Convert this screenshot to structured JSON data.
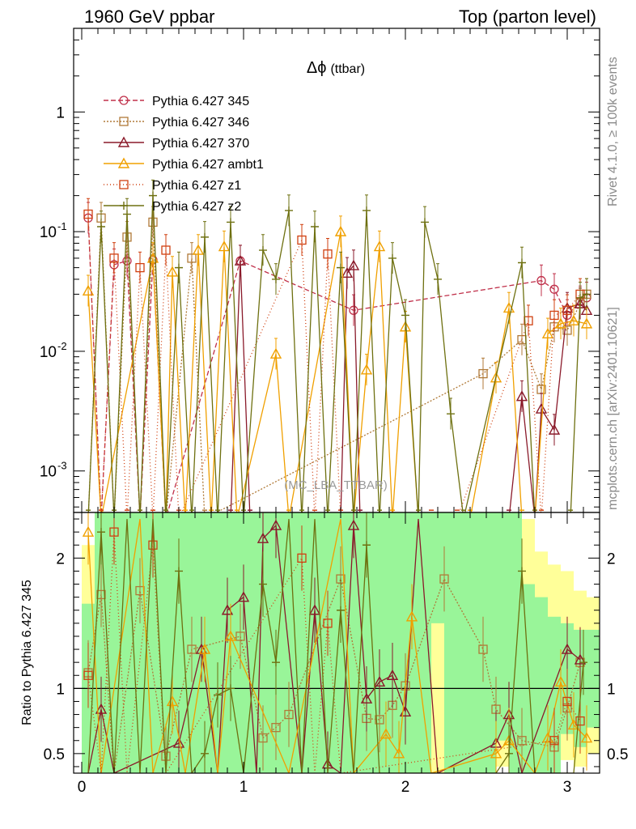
{
  "header": {
    "left": "1960 GeV ppbar",
    "right": "Top (parton level)"
  },
  "side_text": {
    "upper": "Rivet 4.1.0, ≥ 100k events",
    "lower": "mcplots.cern.ch [arXiv:2401.10621]"
  },
  "chart_data": {
    "type": "line",
    "title": "Δϕ (ttbar)",
    "title_symbol": "Δϕ",
    "title_suffix": "(ttbar)",
    "watermark": "(MC_LBA_TTBAR)",
    "xlabel": "",
    "ylabel_ratio": "Ratio to Pythia 6.427 345",
    "xlim": [
      -0.05,
      3.2
    ],
    "ylim_main": [
      0.00045,
      5.0
    ],
    "yscale_main": "log",
    "ylim_ratio": [
      0.35,
      2.35
    ],
    "x_ticks": [
      0,
      1,
      2,
      3
    ],
    "x_tick_labels": [
      "0",
      "1",
      "2",
      "3"
    ],
    "y_ticks_main": [
      0.001,
      0.01,
      0.1,
      1
    ],
    "y_tick_labels_main": [
      "10^-3",
      "10^-2",
      "10^-1",
      "1"
    ],
    "y_ticks_ratio": [
      0.5,
      1,
      2
    ],
    "y_tick_labels_ratio": [
      "0.5",
      "1",
      "2"
    ],
    "legend_position": "top-left",
    "series": [
      {
        "name": "Pythia 6.427 345",
        "color": "#c0304a",
        "dash": "6,3",
        "marker": "circle",
        "points": [
          [
            0.04,
            0.13
          ],
          [
            0.12,
            0.0004
          ],
          [
            0.2,
            0.053
          ],
          [
            0.28,
            0.057
          ],
          [
            0.36,
            0.0004
          ],
          [
            0.44,
            0.058
          ],
          [
            0.52,
            0.0004
          ],
          [
            0.98,
            0.057
          ],
          [
            1.68,
            0.022
          ],
          [
            2.84,
            0.039
          ],
          [
            2.92,
            0.033
          ],
          [
            3.0,
            0.02
          ],
          [
            3.08,
            0.026
          ],
          [
            3.12,
            0.028
          ]
        ]
      },
      {
        "name": "Pythia 6.427 346",
        "color": "#b07a38",
        "dash": "2,2",
        "marker": "square",
        "points": [
          [
            0.04,
            0.0004
          ],
          [
            0.12,
            0.13
          ],
          [
            0.2,
            0.0004
          ],
          [
            0.28,
            0.09
          ],
          [
            0.36,
            0.0004
          ],
          [
            0.44,
            0.12
          ],
          [
            0.52,
            0.0004
          ],
          [
            0.68,
            0.06
          ],
          [
            0.76,
            0.0004
          ],
          [
            2.48,
            0.0065
          ],
          [
            2.72,
            0.0125
          ],
          [
            2.84,
            0.0048
          ],
          [
            2.92,
            0.016
          ],
          [
            3.0,
            0.015
          ],
          [
            3.08,
            0.025
          ],
          [
            3.12,
            0.03
          ]
        ]
      },
      {
        "name": "Pythia 6.427 370",
        "color": "#8a1a2a",
        "dash": "",
        "marker": "triangle-open",
        "points": [
          [
            0.92,
            0.0004
          ],
          [
            0.98,
            0.057
          ],
          [
            1.04,
            0.0004
          ],
          [
            1.6,
            0.0004
          ],
          [
            1.64,
            0.045
          ],
          [
            1.68,
            0.052
          ],
          [
            1.72,
            0.0004
          ],
          [
            2.64,
            0.0004
          ],
          [
            2.72,
            0.0042
          ],
          [
            2.8,
            0.0004
          ],
          [
            2.84,
            0.0033
          ],
          [
            2.92,
            0.0022
          ],
          [
            3.0,
            0.023
          ],
          [
            3.08,
            0.025
          ],
          [
            3.12,
            0.022
          ]
        ]
      },
      {
        "name": "Pythia 6.427 ambt1",
        "color": "#f0a000",
        "dash": "",
        "marker": "triangle-filled",
        "points": [
          [
            0.04,
            0.032
          ],
          [
            0.12,
            0.0004
          ],
          [
            0.44,
            0.06
          ],
          [
            0.52,
            0.0004
          ],
          [
            0.56,
            0.046
          ],
          [
            0.64,
            0.0004
          ],
          [
            0.72,
            0.07
          ],
          [
            0.8,
            0.0004
          ],
          [
            0.88,
            0.075
          ],
          [
            0.96,
            0.0004
          ],
          [
            1.2,
            0.0095
          ],
          [
            1.28,
            0.0004
          ],
          [
            1.6,
            0.1
          ],
          [
            1.68,
            0.0004
          ],
          [
            1.76,
            0.007
          ],
          [
            1.84,
            0.075
          ],
          [
            1.92,
            0.0004
          ],
          [
            2.0,
            0.016
          ],
          [
            2.08,
            0.0004
          ],
          [
            2.4,
            0.0004
          ],
          [
            2.56,
            0.006
          ],
          [
            2.64,
            0.023
          ],
          [
            2.72,
            0.0004
          ],
          [
            2.8,
            0.0004
          ],
          [
            2.88,
            0.014
          ],
          [
            2.96,
            0.017
          ],
          [
            3.04,
            0.018
          ],
          [
            3.12,
            0.017
          ]
        ]
      },
      {
        "name": "Pythia 6.427 z1",
        "color": "#d04010",
        "dash": "1,3",
        "marker": "square",
        "points": [
          [
            0.04,
            0.14
          ],
          [
            0.12,
            0.0004
          ],
          [
            0.2,
            0.06
          ],
          [
            0.28,
            0.0004
          ],
          [
            0.36,
            0.05
          ],
          [
            0.44,
            0.0004
          ],
          [
            0.52,
            0.07
          ],
          [
            0.6,
            0.0004
          ],
          [
            1.36,
            0.085
          ],
          [
            1.44,
            0.0004
          ],
          [
            1.52,
            0.065
          ],
          [
            1.6,
            0.0004
          ],
          [
            2.16,
            0.0004
          ],
          [
            2.32,
            0.0004
          ],
          [
            2.76,
            0.018
          ],
          [
            2.84,
            0.0004
          ],
          [
            2.92,
            0.02
          ],
          [
            3.0,
            0.022
          ],
          [
            3.08,
            0.03
          ]
        ]
      },
      {
        "name": "Pythia 6.427 z2",
        "color": "#6e7010",
        "dash": "",
        "marker": "cross",
        "points": [
          [
            0.04,
            0.0004
          ],
          [
            0.12,
            0.11
          ],
          [
            0.2,
            0.0004
          ],
          [
            0.28,
            0.14
          ],
          [
            0.36,
            0.0004
          ],
          [
            0.44,
            0.2
          ],
          [
            0.52,
            0.0004
          ],
          [
            0.6,
            0.05
          ],
          [
            0.68,
            0.0004
          ],
          [
            0.76,
            0.09
          ],
          [
            0.84,
            0.0004
          ],
          [
            0.92,
            0.12
          ],
          [
            1.0,
            0.0004
          ],
          [
            1.12,
            0.07
          ],
          [
            1.2,
            0.04
          ],
          [
            1.28,
            0.15
          ],
          [
            1.36,
            0.0004
          ],
          [
            1.44,
            0.11
          ],
          [
            1.52,
            0.0004
          ],
          [
            1.6,
            0.05
          ],
          [
            1.68,
            0.0004
          ],
          [
            1.76,
            0.15
          ],
          [
            1.84,
            0.0004
          ],
          [
            1.92,
            0.06
          ],
          [
            2.0,
            0.02
          ],
          [
            2.08,
            0.0004
          ],
          [
            2.12,
            0.12
          ],
          [
            2.2,
            0.04
          ],
          [
            2.28,
            0.003
          ],
          [
            2.36,
            0.0004
          ],
          [
            2.72,
            0.055
          ],
          [
            2.8,
            0.0004
          ],
          [
            3.02,
            0.0004
          ],
          [
            3.08,
            0.028
          ],
          [
            3.12,
            0.03
          ]
        ]
      }
    ],
    "ratio_band": {
      "x_edges": [
        0.0,
        0.08,
        0.16,
        0.24,
        0.32,
        0.4,
        0.48,
        0.56,
        0.64,
        0.72,
        0.8,
        0.88,
        0.96,
        1.04,
        1.12,
        1.2,
        1.28,
        1.36,
        1.44,
        1.52,
        1.6,
        1.68,
        1.76,
        1.84,
        1.92,
        2.0,
        2.08,
        2.16,
        2.24,
        2.32,
        2.4,
        2.48,
        2.56,
        2.64,
        2.72,
        2.8,
        2.88,
        2.96,
        3.04,
        3.12
      ],
      "green_lo": [
        0.35,
        0.35,
        0.35,
        0.35,
        0.35,
        0.35,
        0.35,
        0.35,
        0.35,
        0.35,
        0.35,
        0.35,
        0.35,
        0.35,
        0.35,
        0.35,
        0.35,
        0.35,
        0.35,
        0.35,
        0.35,
        0.35,
        0.35,
        0.35,
        0.35,
        0.35,
        0.35,
        1.5,
        0.35,
        0.35,
        0.35,
        0.35,
        0.6,
        0.35,
        0.35,
        0.35,
        0.35,
        0.65,
        0.55,
        0.7
      ],
      "green_hi": [
        1.65,
        2.35,
        2.35,
        2.35,
        2.35,
        2.35,
        2.35,
        2.35,
        2.35,
        2.35,
        2.35,
        2.35,
        2.35,
        2.35,
        2.35,
        2.35,
        2.35,
        2.35,
        2.35,
        2.35,
        2.35,
        2.35,
        2.35,
        2.35,
        2.35,
        2.35,
        2.35,
        2.35,
        2.35,
        2.35,
        2.35,
        2.35,
        2.35,
        2.35,
        1.8,
        1.7,
        1.55,
        1.5,
        1.45,
        1.45
      ],
      "yellow_lo": [
        0.35,
        0.35,
        0.35,
        0.35,
        0.35,
        0.35,
        0.35,
        0.35,
        0.35,
        0.35,
        0.35,
        0.35,
        0.35,
        0.35,
        0.35,
        0.35,
        0.35,
        0.35,
        0.35,
        0.35,
        0.35,
        0.35,
        0.35,
        0.35,
        0.35,
        0.35,
        0.35,
        0.35,
        0.35,
        0.35,
        0.35,
        0.35,
        0.4,
        0.35,
        0.35,
        0.35,
        0.35,
        0.45,
        0.4,
        0.5
      ],
      "yellow_hi": [
        2.1,
        2.35,
        2.35,
        2.35,
        2.35,
        2.35,
        2.35,
        2.35,
        2.35,
        2.35,
        2.35,
        2.35,
        2.35,
        2.35,
        2.35,
        2.35,
        2.35,
        2.35,
        2.35,
        2.35,
        2.35,
        2.35,
        2.35,
        2.35,
        2.35,
        2.35,
        2.35,
        2.35,
        2.35,
        2.35,
        2.35,
        2.35,
        2.35,
        2.35,
        2.3,
        2.05,
        1.95,
        1.9,
        1.75,
        1.7
      ]
    },
    "ratio_series": [
      {
        "name": "Pythia 6.427 346",
        "points": [
          [
            0.04,
            1.12
          ],
          [
            0.12,
            1.72
          ],
          [
            0.2,
            0.35
          ],
          [
            0.36,
            1.75
          ],
          [
            0.52,
            0.48
          ],
          [
            0.68,
            1.3
          ],
          [
            0.98,
            1.4
          ],
          [
            1.12,
            0.62
          ],
          [
            1.2,
            0.7
          ],
          [
            1.28,
            0.8
          ],
          [
            1.6,
            1.84
          ],
          [
            1.76,
            0.77
          ],
          [
            1.84,
            0.76
          ],
          [
            1.92,
            0.87
          ],
          [
            2.0,
            1.02
          ],
          [
            2.24,
            1.84
          ],
          [
            2.48,
            1.3
          ],
          [
            2.56,
            0.84
          ],
          [
            2.72,
            0.6
          ],
          [
            2.92,
            0.55
          ],
          [
            3.0,
            0.85
          ],
          [
            3.08,
            1.2
          ]
        ]
      },
      {
        "name": "Pythia 6.427 370",
        "points": [
          [
            0.04,
            0.35
          ],
          [
            0.12,
            0.84
          ],
          [
            0.2,
            0.35
          ],
          [
            0.6,
            0.58
          ],
          [
            0.74,
            1.3
          ],
          [
            0.84,
            0.35
          ],
          [
            0.9,
            1.6
          ],
          [
            1.0,
            1.7
          ],
          [
            1.08,
            0.35
          ],
          [
            1.12,
            2.15
          ],
          [
            1.2,
            2.25
          ],
          [
            1.36,
            0.35
          ],
          [
            1.44,
            1.6
          ],
          [
            1.52,
            0.42
          ],
          [
            1.6,
            0.35
          ],
          [
            1.68,
            2.25
          ],
          [
            1.76,
            0.92
          ],
          [
            1.84,
            1.05
          ],
          [
            1.92,
            1.1
          ],
          [
            2.0,
            0.82
          ],
          [
            2.08,
            2.3
          ],
          [
            2.2,
            0.35
          ],
          [
            2.56,
            0.58
          ],
          [
            2.64,
            0.8
          ],
          [
            2.72,
            0.35
          ],
          [
            3.0,
            1.3
          ],
          [
            3.08,
            1.22
          ]
        ]
      },
      {
        "name": "Pythia 6.427 ambt1",
        "points": [
          [
            0.04,
            2.2
          ],
          [
            0.12,
            0.35
          ],
          [
            0.36,
            2.3
          ],
          [
            0.44,
            0.35
          ],
          [
            0.56,
            0.9
          ],
          [
            0.64,
            0.35
          ],
          [
            0.76,
            1.3
          ],
          [
            0.84,
            0.35
          ],
          [
            0.92,
            1.4
          ],
          [
            1.28,
            0.35
          ],
          [
            1.6,
            2.3
          ],
          [
            1.68,
            0.35
          ],
          [
            1.88,
            0.65
          ],
          [
            1.96,
            0.5
          ],
          [
            2.04,
            1.55
          ],
          [
            2.16,
            0.35
          ],
          [
            2.56,
            0.5
          ],
          [
            2.64,
            0.6
          ],
          [
            2.8,
            0.35
          ],
          [
            2.88,
            0.62
          ],
          [
            2.96,
            1.05
          ],
          [
            3.04,
            0.72
          ],
          [
            3.12,
            0.62
          ]
        ]
      },
      {
        "name": "Pythia 6.427 z1",
        "points": [
          [
            0.04,
            1.1
          ],
          [
            0.12,
            0.35
          ],
          [
            0.2,
            2.2
          ],
          [
            0.28,
            0.35
          ],
          [
            0.44,
            2.1
          ],
          [
            0.52,
            0.35
          ],
          [
            1.36,
            2.0
          ],
          [
            1.44,
            0.35
          ],
          [
            1.52,
            1.5
          ],
          [
            1.6,
            0.35
          ],
          [
            2.92,
            0.6
          ],
          [
            3.0,
            0.9
          ],
          [
            3.08,
            0.75
          ]
        ]
      },
      {
        "name": "Pythia 6.427 z2",
        "points": [
          [
            0.04,
            0.35
          ],
          [
            0.12,
            2.2
          ],
          [
            0.2,
            0.35
          ],
          [
            0.28,
            2.3
          ],
          [
            0.36,
            0.35
          ],
          [
            0.44,
            2.3
          ],
          [
            0.52,
            0.35
          ],
          [
            0.6,
            1.9
          ],
          [
            0.68,
            0.35
          ],
          [
            0.76,
            0.5
          ],
          [
            0.84,
            0.95
          ],
          [
            0.92,
            1.0
          ],
          [
            1.0,
            0.35
          ],
          [
            1.12,
            1.8
          ],
          [
            1.2,
            1.2
          ],
          [
            1.28,
            2.3
          ],
          [
            1.36,
            0.35
          ],
          [
            1.44,
            2.3
          ],
          [
            1.52,
            0.35
          ],
          [
            1.6,
            1.6
          ],
          [
            1.68,
            0.35
          ],
          [
            1.76,
            2.1
          ],
          [
            1.84,
            0.35
          ],
          [
            2.56,
            0.35
          ],
          [
            2.64,
            0.5
          ],
          [
            2.72,
            1.9
          ],
          [
            2.8,
            0.35
          ],
          [
            3.04,
            0.35
          ],
          [
            3.1,
            1.2
          ]
        ]
      }
    ]
  }
}
